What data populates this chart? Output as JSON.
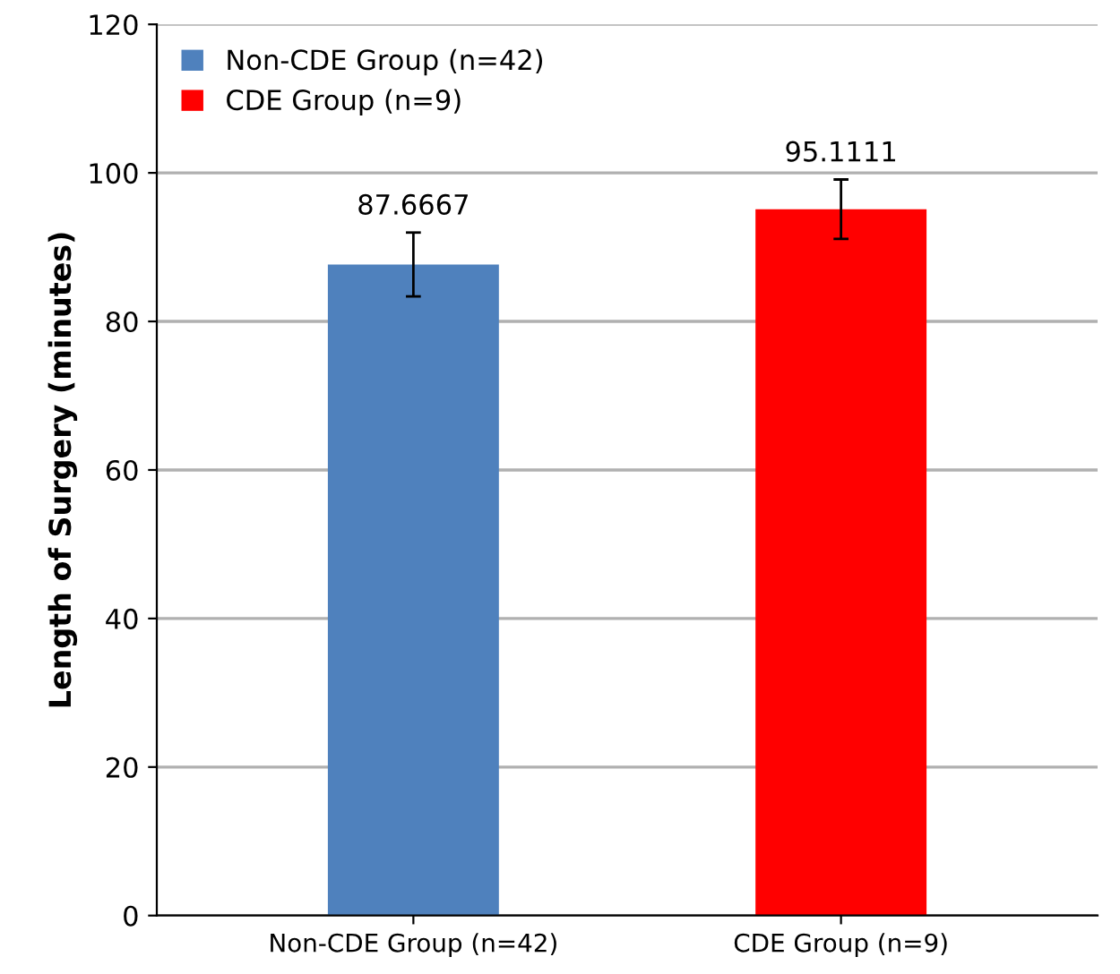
{
  "chart_data": {
    "type": "bar",
    "ylabel": "Length of Surgery (minutes)",
    "categories": [
      "Non-CDE Group (n=42)",
      "CDE Group (n=9)"
    ],
    "series": [
      {
        "name": "Non-CDE Group (n=42)",
        "color": "#4f81bd",
        "values": [
          87.6667,
          null
        ],
        "errors": [
          4.3,
          null
        ]
      },
      {
        "name": "CDE Group (n=9)",
        "color": "#ff0000",
        "values": [
          null,
          95.1111
        ],
        "errors": [
          null,
          4.0
        ]
      }
    ],
    "ylim": [
      0,
      120
    ],
    "yticks": [
      0,
      20,
      40,
      60,
      80,
      100,
      120
    ],
    "grid": "y",
    "legend": "top left",
    "data_labels": true
  }
}
